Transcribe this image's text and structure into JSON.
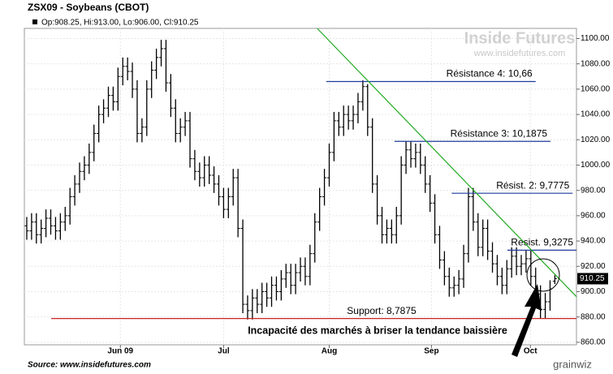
{
  "chart_data": {
    "type": "ohlc",
    "title": "ZSX09 - Soybeans (CBOT)",
    "subtitle": "Op:908.25, Hi:913.00, Lo:906.00, Cl:910.25",
    "watermark": "Inside Futures",
    "watermark_url": "www.insidefutures.com",
    "source": "Source: www.insidefutures.com",
    "brand": "grainwiz",
    "color": "#000000",
    "grid": true,
    "xlim": [
      0,
      115
    ],
    "ylim": [
      858,
      1108
    ],
    "xticks": [
      {
        "value": 20,
        "label": "Jun 09"
      },
      {
        "value": 41.5,
        "label": "Jul"
      },
      {
        "value": 63.5,
        "label": "Aug"
      },
      {
        "value": 84.8,
        "label": "Sep"
      },
      {
        "value": 105.4,
        "label": "Oct"
      }
    ],
    "yticks": [
      {
        "value": 860,
        "label": "860.00"
      },
      {
        "value": 880,
        "label": "880.00"
      },
      {
        "value": 900,
        "label": "900.00"
      },
      {
        "value": 920,
        "label": "920.00"
      },
      {
        "value": 940,
        "label": "940.00"
      },
      {
        "value": 960,
        "label": "960.00"
      },
      {
        "value": 980,
        "label": "980.00"
      },
      {
        "value": 1000,
        "label": "1000.00"
      },
      {
        "value": 1020,
        "label": "1020.00"
      },
      {
        "value": 1040,
        "label": "1040.00"
      },
      {
        "value": 1060,
        "label": "1060.00"
      },
      {
        "value": 1080,
        "label": "1080.00"
      },
      {
        "value": 1100,
        "label": "1100.00"
      }
    ],
    "open": [
      952,
      948,
      955,
      945,
      950,
      958,
      952,
      948,
      955,
      960,
      975,
      985,
      995,
      1000,
      1010,
      1025,
      1040,
      1045,
      1055,
      1050,
      1070,
      1078,
      1074,
      1060,
      1025,
      1030,
      1060,
      1075,
      1085,
      1092,
      1065,
      1045,
      1025,
      1030,
      1035,
      1005,
      995,
      990,
      1000,
      992,
      985,
      975,
      965,
      975,
      990,
      950,
      890,
      885,
      895,
      890,
      900,
      895,
      905,
      900,
      910,
      915,
      905,
      915,
      920,
      912,
      930,
      955,
      975,
      990,
      1010,
      1035,
      1030,
      1040,
      1035,
      1040,
      1050,
      1062,
      1030,
      985,
      960,
      945,
      950,
      945,
      960,
      1000,
      1012,
      1005,
      1010,
      1000,
      985,
      970,
      945,
      925,
      912,
      903,
      905,
      910,
      930,
      975,
      955,
      935,
      950,
      932,
      922,
      912,
      905,
      918,
      928,
      920,
      922,
      926,
      912,
      898,
      886,
      892,
      908.25
    ],
    "high": [
      959,
      962,
      962,
      957,
      965,
      965,
      959,
      962,
      967,
      982,
      992,
      1002,
      1007,
      1017,
      1032,
      1047,
      1052,
      1062,
      1062,
      1077,
      1085,
      1085,
      1081,
      1067,
      1037,
      1067,
      1082,
      1092,
      1099,
      1099,
      1072,
      1052,
      1037,
      1042,
      1042,
      1012,
      1002,
      1007,
      1007,
      999,
      992,
      982,
      982,
      997,
      997,
      957,
      897,
      902,
      902,
      907,
      907,
      912,
      912,
      917,
      922,
      922,
      922,
      927,
      927,
      937,
      962,
      982,
      997,
      1017,
      1042,
      1042,
      1047,
      1047,
      1047,
      1057,
      1067,
      1064,
      1037,
      992,
      967,
      957,
      957,
      967,
      1007,
      1019,
      1019,
      1017,
      1017,
      1007,
      992,
      977,
      952,
      932,
      919,
      912,
      917,
      937,
      982,
      982,
      962,
      957,
      957,
      939,
      929,
      919,
      925,
      935,
      935,
      929,
      933,
      933,
      919,
      905,
      899,
      909,
      913
    ],
    "low": [
      941,
      941,
      938,
      938,
      943,
      945,
      941,
      941,
      948,
      953,
      968,
      978,
      988,
      993,
      1003,
      1018,
      1033,
      1038,
      1043,
      1043,
      1063,
      1067,
      1053,
      1018,
      1018,
      1023,
      1053,
      1068,
      1078,
      1058,
      1038,
      1018,
      1018,
      1023,
      998,
      988,
      983,
      983,
      985,
      978,
      968,
      958,
      958,
      968,
      943,
      883,
      878,
      878,
      883,
      883,
      888,
      888,
      893,
      893,
      903,
      898,
      898,
      908,
      905,
      905,
      923,
      948,
      968,
      983,
      1003,
      1023,
      1023,
      1028,
      1028,
      1033,
      1043,
      1023,
      978,
      953,
      938,
      938,
      938,
      938,
      953,
      993,
      998,
      998,
      993,
      978,
      963,
      938,
      918,
      905,
      896,
      896,
      898,
      903,
      923,
      948,
      928,
      928,
      925,
      915,
      905,
      898,
      898,
      911,
      913,
      913,
      915,
      905,
      891,
      879,
      879,
      885,
      906
    ],
    "close": [
      948,
      955,
      945,
      950,
      958,
      952,
      948,
      955,
      960,
      975,
      985,
      995,
      1000,
      1010,
      1025,
      1040,
      1045,
      1055,
      1050,
      1070,
      1078,
      1074,
      1060,
      1025,
      1030,
      1060,
      1075,
      1085,
      1092,
      1065,
      1045,
      1025,
      1030,
      1035,
      1005,
      995,
      990,
      1000,
      992,
      985,
      975,
      965,
      975,
      990,
      950,
      890,
      885,
      895,
      890,
      900,
      895,
      905,
      900,
      910,
      915,
      905,
      915,
      920,
      912,
      930,
      955,
      975,
      990,
      1010,
      1035,
      1030,
      1040,
      1035,
      1040,
      1050,
      1062,
      1030,
      985,
      960,
      945,
      950,
      945,
      960,
      1000,
      1012,
      1005,
      1010,
      1000,
      985,
      970,
      945,
      925,
      912,
      903,
      905,
      910,
      930,
      975,
      955,
      935,
      950,
      932,
      922,
      912,
      905,
      918,
      928,
      920,
      922,
      926,
      912,
      898,
      886,
      892,
      902,
      910.25
    ],
    "levels": [
      {
        "label": "Résistance 4: 10,66",
        "value": 1066,
        "x": [
          62.9,
          106.5
        ],
        "color": "#1f3c9e"
      },
      {
        "label": "Résistance 3: 10,1875",
        "value": 1018.75,
        "x": [
          77.1,
          109.6
        ],
        "color": "#1f3c9e"
      },
      {
        "label": "Résist. 2: 9,7775",
        "value": 977.75,
        "x": [
          89,
          114.2
        ],
        "color": "#1f3c9e"
      },
      {
        "label": "Resist. 9,3275",
        "value": 932.75,
        "x": [
          100.6,
          115
        ],
        "color": "#1f3c9e"
      },
      {
        "label": "Support: 8,7875",
        "value": 878.75,
        "x": [
          5.6,
          115
        ],
        "color": "#cc2222"
      }
    ],
    "trendline": {
      "x": [
        61,
        115
      ],
      "y": [
        1108,
        896
      ],
      "color": "#22aa22"
    },
    "annotation": "Incapacité des marchés à briser la tendance baissière"
  }
}
